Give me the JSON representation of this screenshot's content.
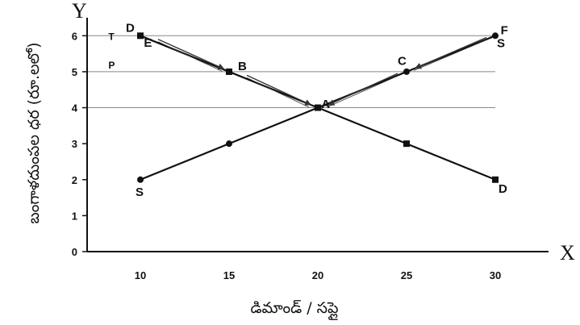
{
  "chart_data": {
    "type": "line",
    "title": "",
    "xlabel": "డిమాండ్ / సప్లై",
    "ylabel": "బంగాళదుంపల ధర (రూ.లలో)",
    "x_axis_letter": "X",
    "y_axis_letter": "Y",
    "xlim": [
      7,
      33
    ],
    "ylim": [
      0,
      6.5
    ],
    "x_ticks": [
      "10",
      "15",
      "20",
      "25",
      "30"
    ],
    "x_tick_values": [
      10,
      15,
      20,
      25,
      30
    ],
    "y_ticks": [
      "0",
      "1",
      "2",
      "3",
      "4",
      "5",
      "6"
    ],
    "y_tick_values": [
      0,
      1,
      2,
      3,
      4,
      5,
      6
    ],
    "grid": "horizontal lines at 4, 5, 6",
    "series": [
      {
        "marker": "square",
        "x": [
          10,
          15,
          20,
          25,
          30
        ],
        "values": [
          6,
          5,
          4,
          3,
          2
        ],
        "start_label": "D",
        "end_label": "D"
      },
      {
        "marker": "circle",
        "x": [
          10,
          15,
          20,
          25,
          30
        ],
        "values": [
          2,
          3,
          4,
          5,
          6
        ],
        "start_label": "S",
        "end_label": "S"
      }
    ],
    "annotations": [
      {
        "text": "T",
        "x": 8.2,
        "y": 6
      },
      {
        "text": "P",
        "x": 8.2,
        "y": 5.2
      },
      {
        "text": "E",
        "x": 10.2,
        "y": 5.8
      },
      {
        "text": "B",
        "x": 15.5,
        "y": 5.15
      },
      {
        "text": "A",
        "x": 20.2,
        "y": 4.1
      },
      {
        "text": "C",
        "x": 24.5,
        "y": 5.3
      },
      {
        "text": "F",
        "x": 30.3,
        "y": 6.15
      }
    ],
    "arrows": [
      {
        "from": [
          11,
          5.9
        ],
        "to": [
          14.7,
          5.08
        ]
      },
      {
        "from": [
          16,
          4.9
        ],
        "to": [
          19.6,
          4.08
        ]
      },
      {
        "from": [
          29.5,
          5.95
        ],
        "to": [
          25.5,
          5.1
        ]
      },
      {
        "from": [
          24.5,
          4.95
        ],
        "to": [
          20.6,
          4.08
        ]
      }
    ],
    "colors": {
      "line": "#111111",
      "grid": "#888888",
      "arrow": "#333333"
    }
  }
}
